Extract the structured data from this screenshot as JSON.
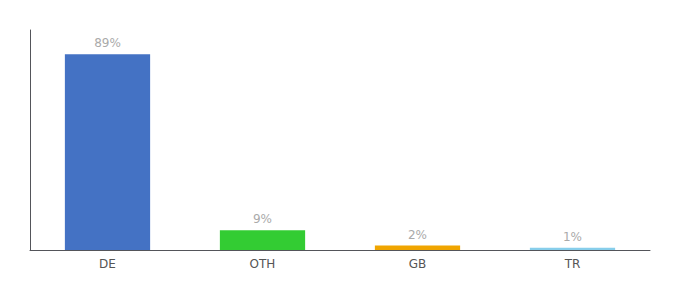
{
  "chart_data": {
    "type": "bar",
    "categories": [
      "DE",
      "OTH",
      "GB",
      "TR"
    ],
    "values": [
      89,
      9,
      2,
      1
    ],
    "value_labels": [
      "89%",
      "9%",
      "2%",
      "1%"
    ],
    "data_labels": true,
    "colors": [
      "#4472c4",
      "#33cc33",
      "#f0a500",
      "#87ceeb"
    ],
    "ylim": [
      0,
      100
    ],
    "tick_labels": "x",
    "grid": false
  }
}
